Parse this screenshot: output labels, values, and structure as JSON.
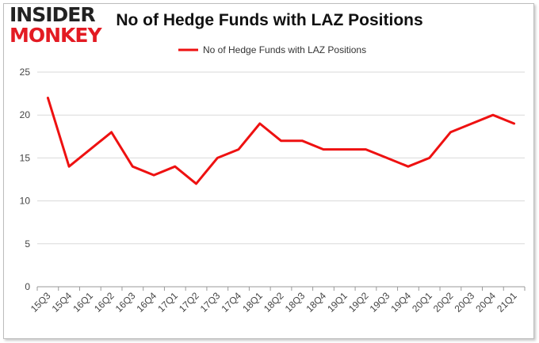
{
  "logo": {
    "line1": "INSIDER",
    "line2": "MONKEY"
  },
  "chart_data": {
    "type": "line",
    "title": "No of Hedge Funds with LAZ Positions",
    "categories": [
      "15Q3",
      "15Q4",
      "16Q1",
      "16Q2",
      "16Q3",
      "16Q4",
      "17Q1",
      "17Q2",
      "17Q3",
      "17Q4",
      "18Q1",
      "18Q2",
      "18Q3",
      "18Q4",
      "19Q1",
      "19Q2",
      "19Q3",
      "19Q4",
      "20Q1",
      "20Q2",
      "20Q3",
      "20Q4",
      "21Q1"
    ],
    "series": [
      {
        "name": "No of Hedge Funds with LAZ Positions",
        "values": [
          22,
          14,
          16,
          18,
          14,
          13,
          14,
          12,
          15,
          16,
          19,
          17,
          17,
          16,
          16,
          16,
          15,
          14,
          15,
          18,
          19,
          20,
          19
        ]
      }
    ],
    "ylim": [
      0,
      25
    ],
    "yticks": [
      0,
      5,
      10,
      15,
      20,
      25
    ],
    "xlabel": "",
    "ylabel": "",
    "grid": true,
    "legend": "top-center",
    "colors": {
      "line": "#ee1111",
      "grid": "#d9d9d9",
      "axis": "#999999"
    }
  }
}
